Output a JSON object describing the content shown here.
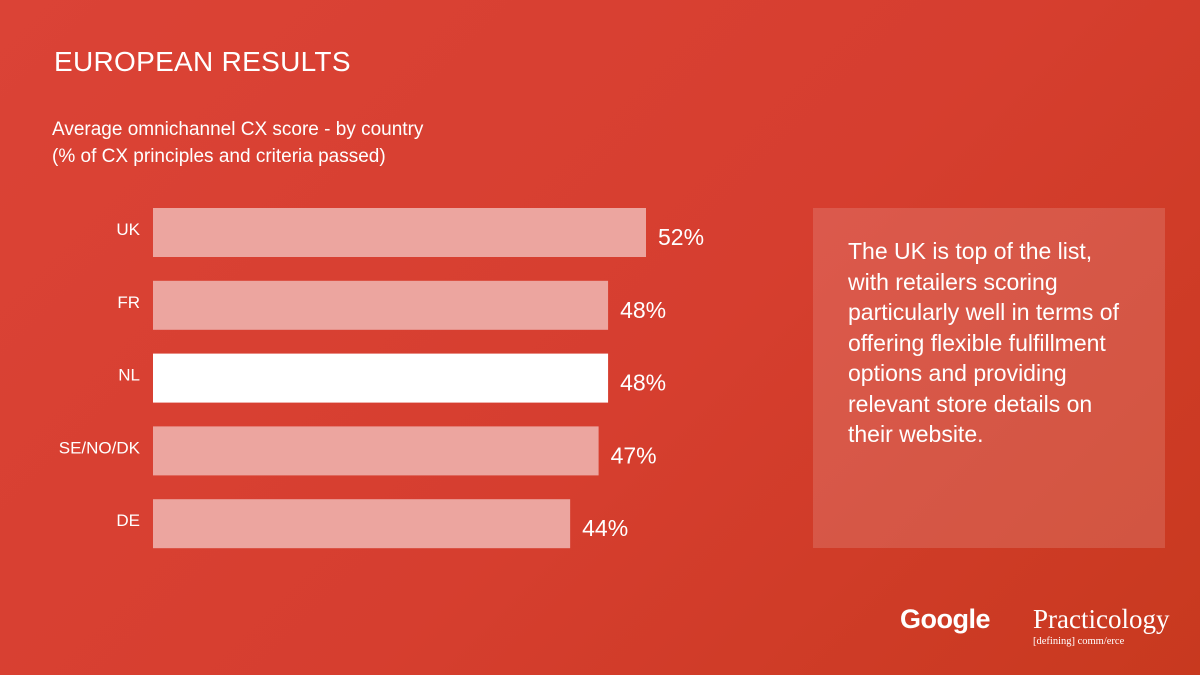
{
  "title": "EUROPEAN RESULTS",
  "subtitle_line1": "Average omnichannel CX score - by country",
  "subtitle_line2": "(% of CX principles and criteria passed)",
  "callout_text": "The UK is top of the list, with retailers scoring particularly well in terms of offering flexible fulfillment options and providing relevant store details on their website.",
  "logos": {
    "google": "Google",
    "practicology": "Practicology",
    "practicology_tagline": "[defining] comm/erce"
  },
  "colors": {
    "background": "#d63e2f",
    "bar": "#eca59f",
    "bar_highlight": "#ffffff",
    "text": "#ffffff"
  },
  "chart_data": {
    "type": "bar",
    "orientation": "horizontal",
    "categories": [
      "UK",
      "FR",
      "NL",
      "SE/NO/DK",
      "DE"
    ],
    "values": [
      52,
      48,
      48,
      47,
      44
    ],
    "value_labels": [
      "52%",
      "48%",
      "48%",
      "47%",
      "44%"
    ],
    "highlighted_category": "NL",
    "title": "Average omnichannel CX score - by country",
    "xlabel": "",
    "ylabel": "",
    "grid": false,
    "legend": "none"
  }
}
